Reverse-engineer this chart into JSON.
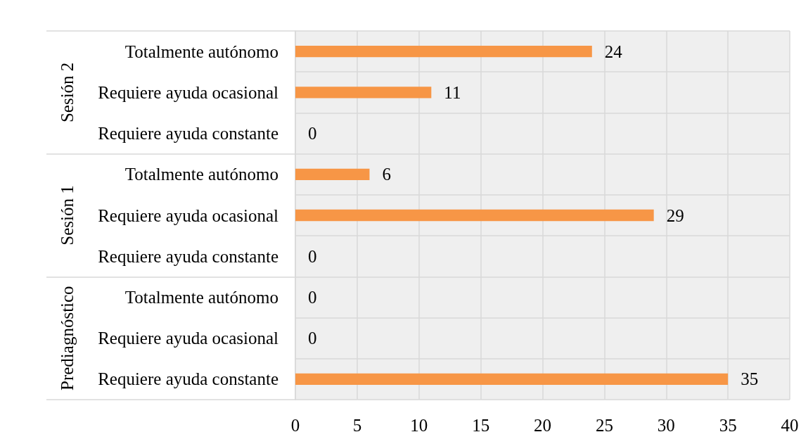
{
  "chart_data": {
    "type": "bar",
    "orientation": "horizontal",
    "categories": [
      "Totalmente autónomo",
      "Requiere ayuda ocasional",
      "Requiere ayuda constante",
      "Totalmente autónomo",
      "Requiere ayuda ocasional",
      "Requiere ayuda constante",
      "Totalmente autónomo",
      "Requiere ayuda ocasional",
      "Requiere ayuda constante"
    ],
    "values": [
      24,
      11,
      0,
      6,
      29,
      0,
      0,
      0,
      35
    ],
    "color": "#f79646",
    "xlim": [
      0,
      40
    ],
    "xticks": [
      0,
      5,
      10,
      15,
      20,
      25,
      30,
      35,
      40
    ],
    "grid": true,
    "data_labels": true,
    "annotations": [
      "Sesión 2",
      "Sesión 1",
      "Prediagnóstico"
    ]
  }
}
